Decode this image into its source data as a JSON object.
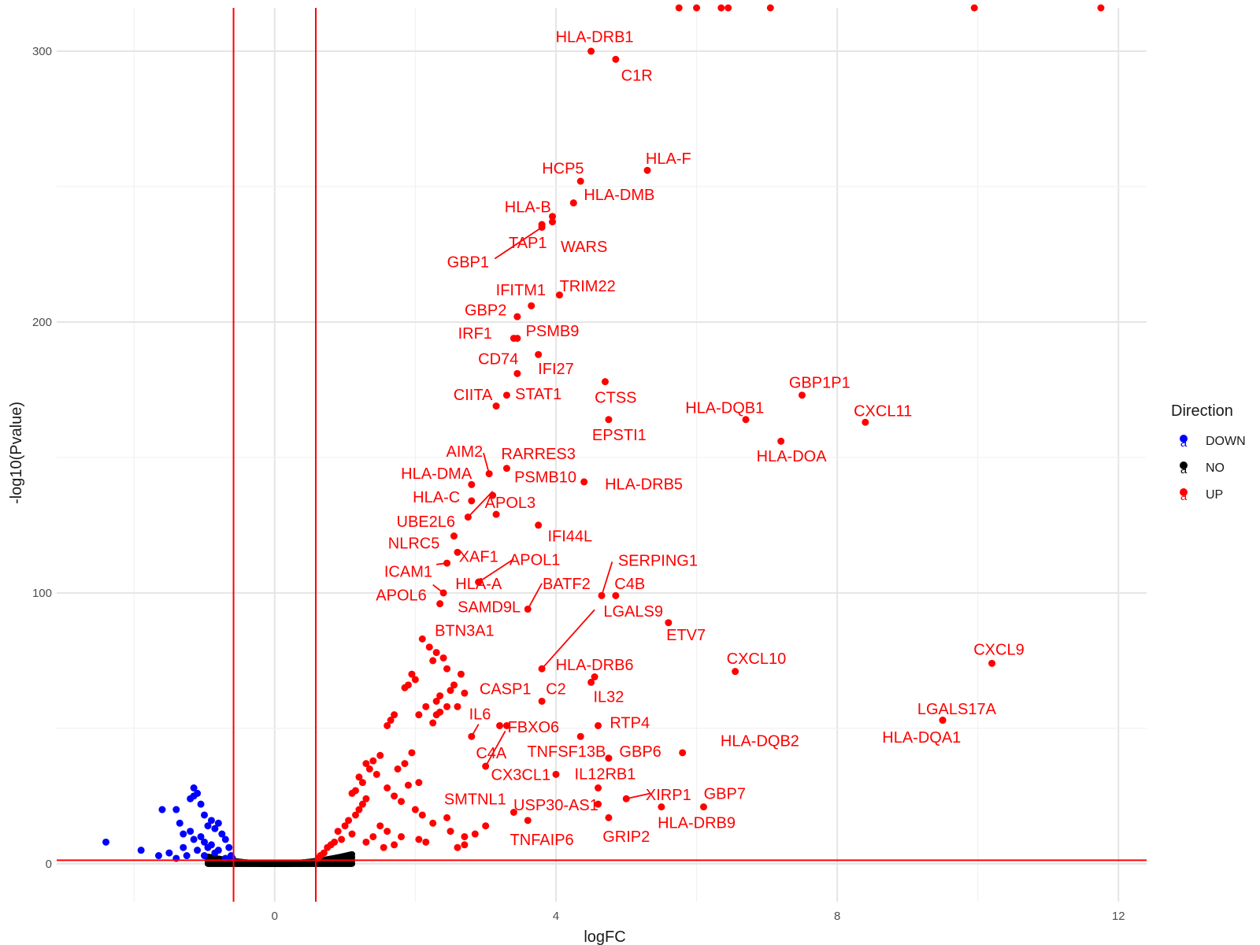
{
  "chart_data": {
    "type": "scatter",
    "title": "",
    "xlabel": "logFC",
    "ylabel": "-log10(Pvalue)",
    "xlim": [
      -3.1,
      12.4
    ],
    "ylim": [
      -14,
      316
    ],
    "x_ticks": [
      0,
      4,
      8,
      12
    ],
    "y_ticks": [
      0,
      100,
      200,
      300
    ],
    "grid": true,
    "thresholds": {
      "logFC_lines": [
        -0.585,
        0.585
      ],
      "pvalue_line": 1.3,
      "color": "#ff0000"
    },
    "legend": {
      "title": "Direction",
      "position": "right",
      "entries": [
        {
          "name": "DOWN",
          "color": "#0000ff"
        },
        {
          "name": "NO",
          "color": "#000000"
        },
        {
          "name": "UP",
          "color": "#ff0000"
        }
      ]
    },
    "series": [
      {
        "name": "UP",
        "color": "#ff0000",
        "labeled_points": [
          {
            "label": "HLA-DRB1",
            "x": 4.5,
            "y": 300,
            "lx": 4.55,
            "ly": 305.4
          },
          {
            "label": "C1R",
            "x": 4.85,
            "y": 297,
            "lx": 5.15,
            "ly": 291.2
          },
          {
            "label": "HLA-F",
            "x": 5.3,
            "y": 256,
            "lx": 5.6,
            "ly": 260.4
          },
          {
            "label": "HCP5",
            "x": 4.35,
            "y": 252,
            "lx": 4.1,
            "ly": 256.8
          },
          {
            "label": "HLA-DMB",
            "x": 4.25,
            "y": 244,
            "lx": 4.9,
            "ly": 247.1
          },
          {
            "label": "HLA-B",
            "x": 3.95,
            "y": 239,
            "lx": 3.6,
            "ly": 242.6
          },
          {
            "label": "WARS",
            "x": 3.95,
            "y": 237,
            "lx": 4.4,
            "ly": 227.9
          },
          {
            "label": "TAP1",
            "x": 3.8,
            "y": 236,
            "lx": 3.6,
            "ly": 229.4
          },
          {
            "label": "GBP1",
            "x": 3.8,
            "y": 235,
            "lx": 2.75,
            "ly": 222.2,
            "line": [
              3.13,
              223.4
            ]
          },
          {
            "label": "TRIM22",
            "x": 4.05,
            "y": 210,
            "lx": 4.45,
            "ly": 213.4
          },
          {
            "label": "IFITM1",
            "x": 3.65,
            "y": 206,
            "lx": 3.5,
            "ly": 211.9
          },
          {
            "label": "GBP2",
            "x": 3.45,
            "y": 202,
            "lx": 3.0,
            "ly": 204.5
          },
          {
            "label": "IRF1",
            "x": 3.45,
            "y": 194,
            "lx": 2.85,
            "ly": 195.9
          },
          {
            "label": "PSMB9",
            "x": 3.4,
            "y": 194,
            "lx": 3.95,
            "ly": 196.8
          },
          {
            "label": "CD74",
            "x": 3.45,
            "y": 181,
            "lx": 3.18,
            "ly": 186.4
          },
          {
            "label": "IFI27",
            "x": 3.75,
            "y": 188,
            "lx": 4.0,
            "ly": 182.8
          },
          {
            "label": "CTSS",
            "x": 4.7,
            "y": 178,
            "lx": 4.85,
            "ly": 172.2
          },
          {
            "label": "CIITA",
            "x": 3.15,
            "y": 169,
            "lx": 2.82,
            "ly": 173.3
          },
          {
            "label": "STAT1",
            "x": 3.3,
            "y": 173,
            "lx": 3.75,
            "ly": 173.5
          },
          {
            "label": "GBP1P1",
            "x": 7.5,
            "y": 173,
            "lx": 7.75,
            "ly": 177.8
          },
          {
            "label": "HLA-DQB1",
            "x": 6.7,
            "y": 164,
            "lx": 6.4,
            "ly": 168.5
          },
          {
            "label": "CXCL11",
            "x": 8.4,
            "y": 163,
            "lx": 8.65,
            "ly": 167.3
          },
          {
            "label": "EPSTI1",
            "x": 4.75,
            "y": 164,
            "lx": 4.9,
            "ly": 158.4
          },
          {
            "label": "HLA-DOA",
            "x": 7.2,
            "y": 156,
            "lx": 7.35,
            "ly": 150.5
          },
          {
            "label": "AIM2",
            "x": 3.05,
            "y": 144,
            "lx": 2.7,
            "ly": 152.3,
            "line": [
              2.97,
              151.7
            ]
          },
          {
            "label": "RARRES3",
            "x": 3.3,
            "y": 146,
            "lx": 3.75,
            "ly": 151.4
          },
          {
            "label": "HLA-DMA",
            "x": 2.8,
            "y": 140,
            "lx": 2.3,
            "ly": 144.2
          },
          {
            "label": "PSMB10",
            "x": 3.1,
            "y": 136,
            "lx": 3.85,
            "ly": 142.9
          },
          {
            "label": "HLA-DRB5",
            "x": 4.4,
            "y": 141,
            "lx": 5.25,
            "ly": 140.2
          },
          {
            "label": "HLA-C",
            "x": 2.8,
            "y": 134,
            "lx": 2.3,
            "ly": 135.5
          },
          {
            "label": "APOL3",
            "x": 3.15,
            "y": 129,
            "lx": 3.35,
            "ly": 133.4
          },
          {
            "label": "UBE2L6",
            "x": 2.75,
            "y": 128,
            "lx": 2.15,
            "ly": 126.5,
            "line": [
              3.1,
              137.5
            ]
          },
          {
            "label": "IFI44L",
            "x": 3.75,
            "y": 125,
            "lx": 4.2,
            "ly": 121.0
          },
          {
            "label": "NLRC5",
            "x": 2.55,
            "y": 121,
            "lx": 1.98,
            "ly": 118.5
          },
          {
            "label": "XAF1",
            "x": 2.6,
            "y": 115,
            "lx": 2.9,
            "ly": 113.5
          },
          {
            "label": "APOL1",
            "x": 2.9,
            "y": 104,
            "lx": 3.7,
            "ly": 112.3,
            "line": [
              3.4,
              112.5
            ]
          },
          {
            "label": "ICAM1",
            "x": 2.45,
            "y": 111,
            "lx": 1.9,
            "ly": 108.0,
            "line": [
              2.3,
              110.5
            ]
          },
          {
            "label": "SERPING1",
            "x": 4.65,
            "y": 99,
            "lx": 5.45,
            "ly": 112.0,
            "line": [
              4.8,
              111.5
            ]
          },
          {
            "label": "HLA-A",
            "x": 2.9,
            "y": 104,
            "lx": 2.9,
            "ly": 103.4
          },
          {
            "label": "BATF2",
            "x": 3.6,
            "y": 94,
            "lx": 4.15,
            "ly": 103.5,
            "line": [
              3.8,
              103.5
            ]
          },
          {
            "label": "C4B",
            "x": 4.85,
            "y": 99,
            "lx": 5.05,
            "ly": 103.5
          },
          {
            "label": "APOL6",
            "x": 2.4,
            "y": 100,
            "lx": 1.8,
            "ly": 99.3,
            "line": [
              2.25,
              103.0
            ]
          },
          {
            "label": "SAMD9L",
            "x": 2.35,
            "y": 96,
            "lx": 3.05,
            "ly": 94.9
          },
          {
            "label": "LGALS9",
            "x": 3.8,
            "y": 72,
            "lx": 5.1,
            "ly": 93.3,
            "line": [
              4.55,
              93.8
            ]
          },
          {
            "label": "ETV7",
            "x": 5.6,
            "y": 89,
            "lx": 5.85,
            "ly": 84.5
          },
          {
            "label": "BTN3A1",
            "x": 2.1,
            "y": 83,
            "lx": 2.7,
            "ly": 86.2
          },
          {
            "label": "CXCL9",
            "x": 10.2,
            "y": 74,
            "lx": 10.3,
            "ly": 79.2
          },
          {
            "label": "CXCL10",
            "x": 6.55,
            "y": 71,
            "lx": 6.85,
            "ly": 75.9
          },
          {
            "label": "HLA-DRB6",
            "x": 4.55,
            "y": 69,
            "lx": 4.55,
            "ly": 73.5
          },
          {
            "label": "CASP1",
            "x": 3.2,
            "y": 51,
            "lx": 3.28,
            "ly": 64.7
          },
          {
            "label": "C2",
            "x": 3.8,
            "y": 60,
            "lx": 4.0,
            "ly": 64.7
          },
          {
            "label": "IL32",
            "x": 4.5,
            "y": 67,
            "lx": 4.75,
            "ly": 61.7
          },
          {
            "label": "IL6",
            "x": 2.8,
            "y": 47,
            "lx": 2.92,
            "ly": 55.3,
            "line": [
              2.9,
              51.5
            ]
          },
          {
            "label": "LGALS17A",
            "x": 9.5,
            "y": 53,
            "lx": 9.7,
            "ly": 57.2
          },
          {
            "label": "FBXO6",
            "x": 3.3,
            "y": 51,
            "lx": 3.68,
            "ly": 50.6
          },
          {
            "label": "RTP4",
            "x": 4.6,
            "y": 51,
            "lx": 5.05,
            "ly": 52.1
          },
          {
            "label": "HLA-DQA1",
            "x": 9.5,
            "y": 53,
            "lx": 9.2,
            "ly": 46.7
          },
          {
            "label": "HLA-DQB2",
            "x": 5.8,
            "y": 41,
            "lx": 6.9,
            "ly": 45.4
          },
          {
            "label": "TNFSF13B",
            "x": 4.35,
            "y": 47,
            "lx": 4.15,
            "ly": 41.6
          },
          {
            "label": "GBP6",
            "x": 4.75,
            "y": 39,
            "lx": 5.2,
            "ly": 41.6
          },
          {
            "label": "C4A",
            "x": 3.0,
            "y": 36,
            "lx": 3.08,
            "ly": 40.9,
            "line": [
              3.28,
              49.0
            ]
          },
          {
            "label": "CX3CL1",
            "x": 4.0,
            "y": 33,
            "lx": 3.5,
            "ly": 32.9
          },
          {
            "label": "IL12RB1",
            "x": 4.6,
            "y": 28,
            "lx": 4.7,
            "ly": 33.3
          },
          {
            "label": "GBP7",
            "x": 6.1,
            "y": 21,
            "lx": 6.4,
            "ly": 26.0
          },
          {
            "label": "XIRP1",
            "x": 5.0,
            "y": 24,
            "lx": 5.6,
            "ly": 25.6,
            "line": [
              5.35,
              26.0
            ]
          },
          {
            "label": "SMTNL1",
            "x": 3.4,
            "y": 19,
            "lx": 2.85,
            "ly": 24.0
          },
          {
            "label": "USP30-AS1",
            "x": 4.6,
            "y": 22,
            "lx": 4.0,
            "ly": 21.7
          },
          {
            "label": "HLA-DRB9",
            "x": 5.5,
            "y": 21,
            "lx": 6.0,
            "ly": 15.2
          },
          {
            "label": "TNFAIP6",
            "x": 3.6,
            "y": 16,
            "lx": 3.8,
            "ly": 9.0
          },
          {
            "label": "GRIP2",
            "x": 4.75,
            "y": 17,
            "lx": 5.0,
            "ly": 10.1
          }
        ],
        "additional_points": [
          [
            5.75,
            316
          ],
          [
            6.0,
            316
          ],
          [
            6.35,
            316
          ],
          [
            6.45,
            316
          ],
          [
            7.05,
            316
          ],
          [
            9.95,
            316
          ],
          [
            11.75,
            316
          ],
          [
            2.65,
            70
          ],
          [
            2.7,
            63
          ],
          [
            2.45,
            58
          ],
          [
            2.3,
            55
          ],
          [
            2.25,
            52
          ],
          [
            2.35,
            56
          ],
          [
            2.5,
            64
          ],
          [
            2.55,
            66
          ],
          [
            2.6,
            58
          ],
          [
            2.2,
            80
          ],
          [
            2.25,
            75
          ],
          [
            2.3,
            78
          ],
          [
            2.4,
            76
          ],
          [
            2.45,
            72
          ],
          [
            2.0,
            68
          ],
          [
            1.95,
            70
          ],
          [
            1.9,
            66
          ],
          [
            1.85,
            65
          ],
          [
            1.7,
            55
          ],
          [
            1.65,
            53
          ],
          [
            1.6,
            51
          ],
          [
            2.35,
            62
          ],
          [
            2.3,
            60
          ],
          [
            2.15,
            58
          ],
          [
            2.05,
            55
          ],
          [
            1.5,
            40
          ],
          [
            1.4,
            38
          ],
          [
            1.3,
            37
          ],
          [
            1.35,
            35
          ],
          [
            1.45,
            33
          ],
          [
            1.2,
            32
          ],
          [
            1.25,
            30
          ],
          [
            1.15,
            27
          ],
          [
            1.1,
            26
          ],
          [
            1.75,
            35
          ],
          [
            1.85,
            37
          ],
          [
            1.95,
            41
          ],
          [
            1.6,
            28
          ],
          [
            1.7,
            25
          ],
          [
            1.8,
            23
          ],
          [
            1.9,
            29
          ],
          [
            2.05,
            30
          ],
          [
            2.0,
            20
          ],
          [
            2.1,
            18
          ],
          [
            2.25,
            15
          ],
          [
            2.45,
            17
          ],
          [
            2.5,
            12
          ],
          [
            2.7,
            10
          ],
          [
            2.85,
            11
          ],
          [
            3.0,
            14
          ],
          [
            2.05,
            9
          ],
          [
            2.15,
            8
          ],
          [
            1.8,
            10
          ],
          [
            1.6,
            12
          ],
          [
            1.5,
            14
          ],
          [
            1.4,
            10
          ],
          [
            1.3,
            8
          ],
          [
            1.55,
            6
          ],
          [
            1.7,
            7
          ],
          [
            2.6,
            6
          ],
          [
            2.7,
            7
          ],
          [
            0.9,
            12
          ],
          [
            0.95,
            9
          ],
          [
            1.0,
            14
          ],
          [
            1.05,
            16
          ],
          [
            1.1,
            11
          ],
          [
            1.15,
            18
          ],
          [
            1.2,
            20
          ],
          [
            1.25,
            22
          ],
          [
            1.3,
            24
          ],
          [
            0.8,
            7
          ],
          [
            0.85,
            8
          ],
          [
            0.75,
            6
          ],
          [
            0.7,
            4
          ],
          [
            0.65,
            3
          ],
          [
            0.62,
            2
          ]
        ]
      },
      {
        "name": "DOWN",
        "color": "#0000ff",
        "points": [
          [
            -2.4,
            8
          ],
          [
            -1.9,
            5
          ],
          [
            -1.65,
            3
          ],
          [
            -1.6,
            20
          ],
          [
            -1.4,
            20
          ],
          [
            -1.35,
            15
          ],
          [
            -1.2,
            24
          ],
          [
            -1.15,
            25
          ],
          [
            -1.15,
            28
          ],
          [
            -1.1,
            26
          ],
          [
            -1.05,
            22
          ],
          [
            -1.0,
            18
          ],
          [
            -1.2,
            12
          ],
          [
            -1.3,
            6
          ],
          [
            -1.5,
            4
          ],
          [
            -1.4,
            2
          ],
          [
            -1.25,
            3
          ],
          [
            -1.1,
            5
          ],
          [
            -1.05,
            10
          ],
          [
            -0.95,
            14
          ],
          [
            -0.9,
            16
          ],
          [
            -0.85,
            13
          ],
          [
            -0.8,
            15
          ],
          [
            -0.75,
            11
          ],
          [
            -0.7,
            9
          ],
          [
            -0.65,
            6
          ],
          [
            -0.62,
            3
          ],
          [
            -0.6,
            2
          ],
          [
            -1.0,
            8
          ],
          [
            -0.95,
            6
          ],
          [
            -0.9,
            7
          ],
          [
            -0.85,
            4
          ],
          [
            -1.15,
            9
          ],
          [
            -1.3,
            11
          ],
          [
            -1.0,
            3
          ],
          [
            -0.7,
            2
          ],
          [
            -0.8,
            5
          ]
        ]
      }
    ]
  }
}
